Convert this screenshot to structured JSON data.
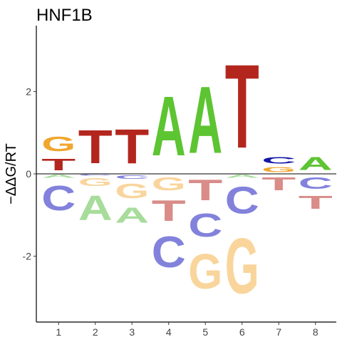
{
  "chart_data": {
    "type": "sequence-logo",
    "title": "HNF1B",
    "xlabel": "",
    "ylabel": "−ΔΔG/RT",
    "ylim": [
      -3.6,
      3.6
    ],
    "x_ticks": [
      "1",
      "2",
      "3",
      "4",
      "5",
      "6",
      "7",
      "8"
    ],
    "y_ticks": [
      {
        "value": -2,
        "label": "-2"
      },
      {
        "value": 0,
        "label": "0"
      },
      {
        "value": 2,
        "label": "2"
      }
    ],
    "grid": false,
    "legend": "none",
    "colors": {
      "A_pos": "#5dc432",
      "C_pos": "#1418a6",
      "G_pos": "#f0a62f",
      "T_pos": "#b3261e",
      "A_neg": "#a7dc9a",
      "C_neg": "#8282dc",
      "G_neg": "#f9d59c",
      "T_neg": "#d98c88"
    },
    "positions": [
      {
        "pos": 1,
        "positive": [
          {
            "base": "T",
            "value": 0.45
          },
          {
            "base": "G",
            "value": 0.55
          }
        ],
        "negative": [
          {
            "base": "A",
            "value": 0.12
          },
          {
            "base": "C",
            "value": 0.95
          }
        ]
      },
      {
        "pos": 2,
        "positive": [
          {
            "base": "T",
            "value": 1.3
          }
        ],
        "negative": [
          {
            "base": "C",
            "value": 0.05
          },
          {
            "base": "G",
            "value": 0.3
          },
          {
            "base": "A",
            "value": 0.95
          }
        ]
      },
      {
        "pos": 3,
        "positive": [
          {
            "base": "T",
            "value": 1.33
          }
        ],
        "negative": [
          {
            "base": "C",
            "value": 0.15
          },
          {
            "base": "G",
            "value": 0.55
          },
          {
            "base": "A",
            "value": 0.6
          }
        ]
      },
      {
        "pos": 4,
        "positive": [
          {
            "base": "A",
            "value": 2.3
          }
        ],
        "negative": [
          {
            "base": "G",
            "value": 0.5
          },
          {
            "base": "T",
            "value": 0.8
          },
          {
            "base": "C",
            "value": 1.2
          }
        ]
      },
      {
        "pos": 5,
        "positive": [
          {
            "base": "A",
            "value": 2.6
          }
        ],
        "negative": [
          {
            "base": "T",
            "value": 0.8
          },
          {
            "base": "C",
            "value": 0.9
          },
          {
            "base": "G",
            "value": 1.35
          }
        ]
      },
      {
        "pos": 6,
        "positive": [
          {
            "base": "T",
            "value": 3.25
          }
        ],
        "negative": [
          {
            "base": "A",
            "value": 0.12
          },
          {
            "base": "C",
            "value": 1.05
          },
          {
            "base": "G",
            "value": 2.15
          }
        ]
      },
      {
        "pos": 7,
        "positive": [
          {
            "base": "G",
            "value": 0.2
          },
          {
            "base": "C",
            "value": 0.25
          }
        ],
        "negative": [
          {
            "base": "T",
            "value": 0.5
          }
        ]
      },
      {
        "pos": 8,
        "positive": [
          {
            "base": "A",
            "value": 0.5
          }
        ],
        "negative": [
          {
            "base": "C",
            "value": 0.45
          },
          {
            "base": "T",
            "value": 0.5
          }
        ]
      }
    ]
  }
}
